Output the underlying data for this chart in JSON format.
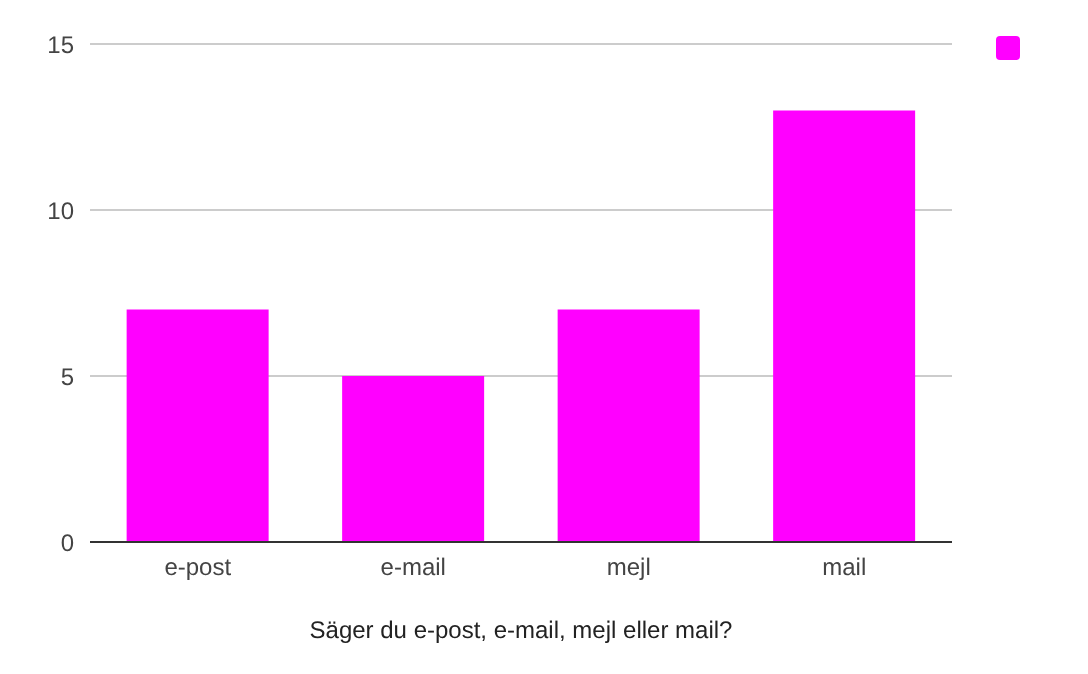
{
  "chart_data": {
    "type": "bar",
    "xlabel": "Säger du e-post, e-mail, mejl eller mail?",
    "categories": [
      "e-post",
      "e-mail",
      "mejl",
      "mail"
    ],
    "series": [
      {
        "color": "#ff00ff",
        "values": [
          7,
          5,
          7,
          13
        ]
      }
    ],
    "ylim": [
      0,
      15
    ],
    "yticks": [
      0,
      5,
      10,
      15
    ],
    "grid": "y"
  }
}
